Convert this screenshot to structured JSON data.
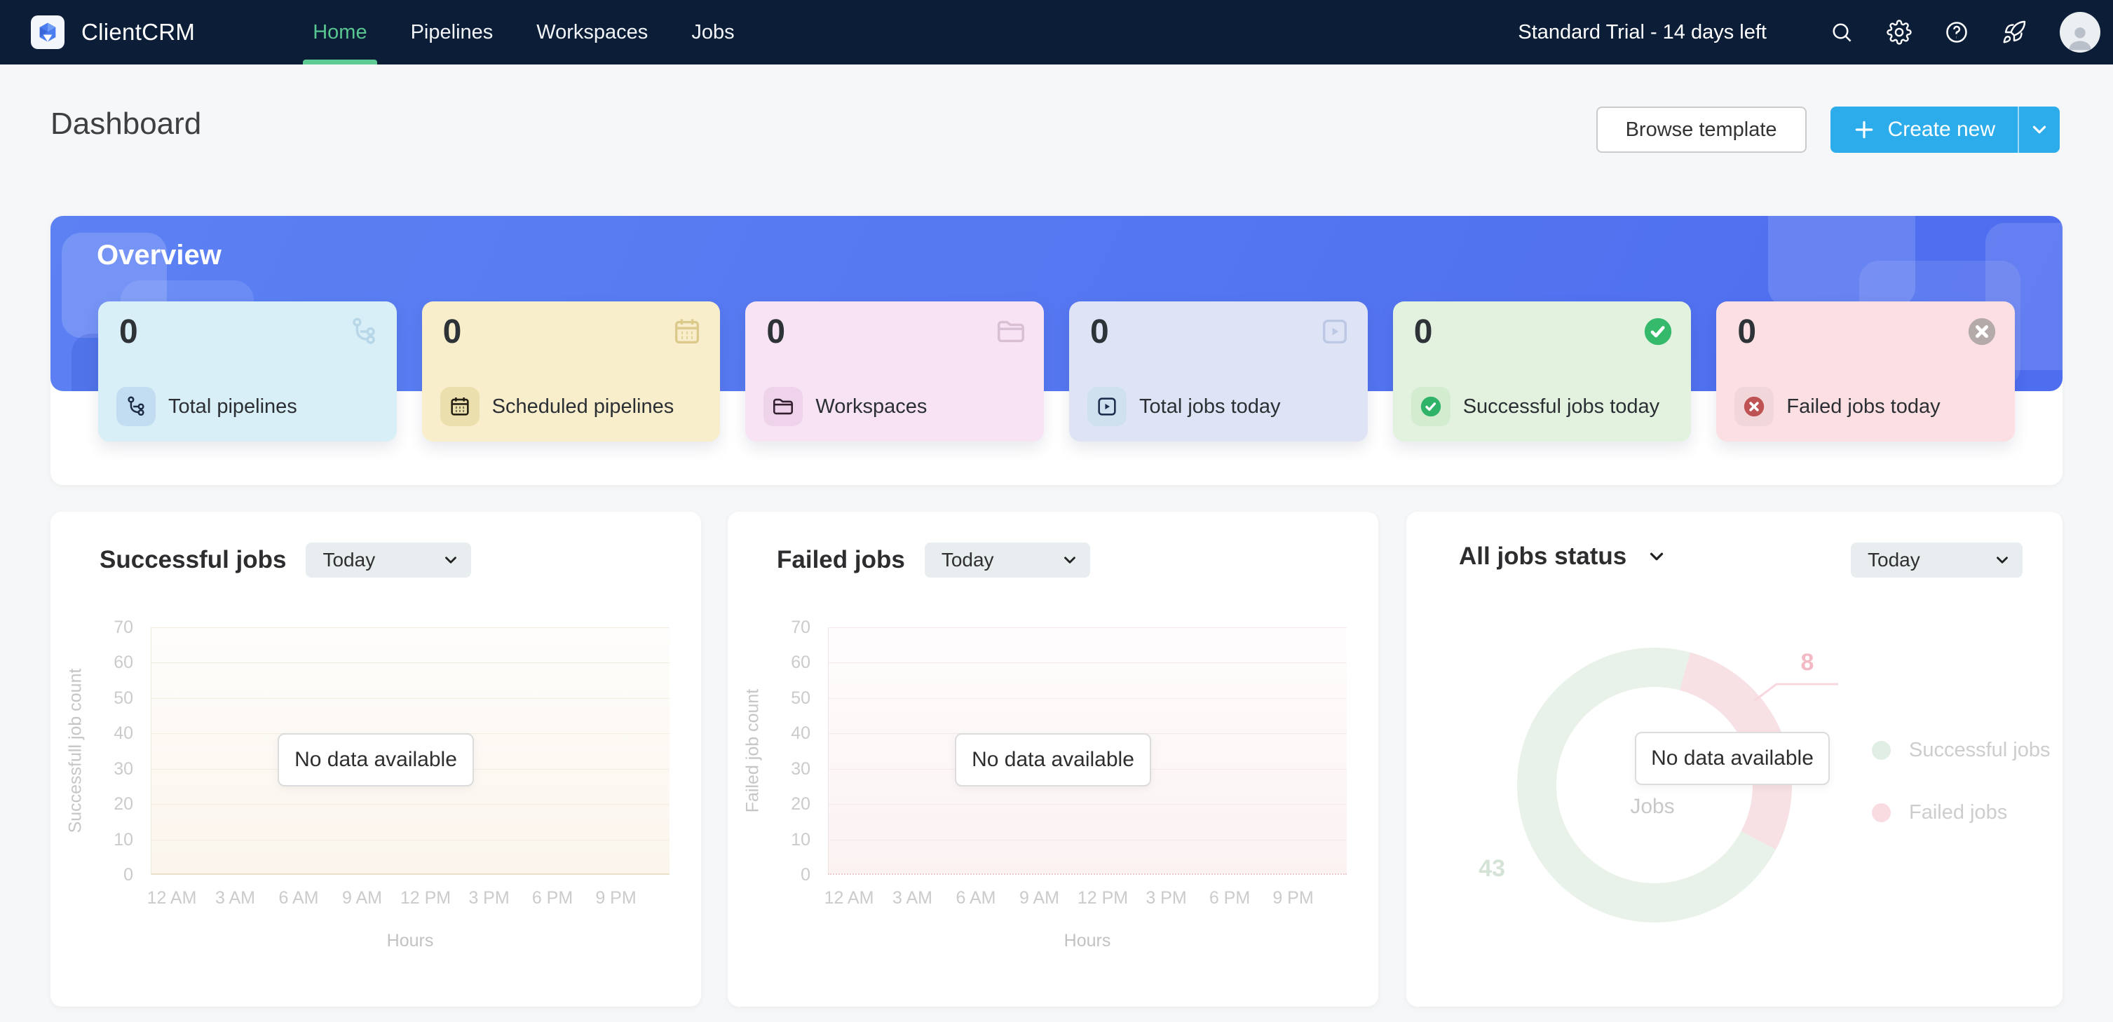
{
  "topbar": {
    "brand": "ClientCRM",
    "nav": [
      {
        "label": "Home",
        "active": true
      },
      {
        "label": "Pipelines",
        "active": false
      },
      {
        "label": "Workspaces",
        "active": false
      },
      {
        "label": "Jobs",
        "active": false
      }
    ],
    "trial_text": "Standard Trial - 14 days left",
    "icons": [
      "search-icon",
      "settings-icon",
      "help-icon",
      "rocket-icon",
      "avatar"
    ]
  },
  "page": {
    "title": "Dashboard",
    "actions": {
      "browse_template": "Browse template",
      "create_new": "Create new"
    }
  },
  "overview": {
    "title": "Overview",
    "cards": [
      {
        "value": "0",
        "label": "Total pipelines",
        "icon": "pipeline-icon",
        "bg": "#d8eff7"
      },
      {
        "value": "0",
        "label": "Scheduled pipelines",
        "icon": "calendar-icon",
        "bg": "#f8eecb"
      },
      {
        "value": "0",
        "label": "Workspaces",
        "icon": "folder-icon",
        "bg": "#f7e3f4"
      },
      {
        "value": "0",
        "label": "Total jobs today",
        "icon": "job-run-icon",
        "bg": "#dee4f6"
      },
      {
        "value": "0",
        "label": "Successful jobs today",
        "icon": "check-circle-icon",
        "bg": "#e2f2df"
      },
      {
        "value": "0",
        "label": "Failed jobs today",
        "icon": "x-circle-icon",
        "bg": "#fcdfe2"
      }
    ]
  },
  "chart_data": [
    {
      "type": "line",
      "title": "Successful jobs",
      "range_label": "Today",
      "x": [
        "12 AM",
        "3 AM",
        "6 AM",
        "9 AM",
        "12 PM",
        "3 PM",
        "6 PM",
        "9 PM"
      ],
      "series": [],
      "xlabel": "Hours",
      "ylabel": "Successfull job count",
      "ylim": [
        0,
        70
      ],
      "yticks": [
        0,
        10,
        20,
        30,
        40,
        50,
        60,
        70
      ],
      "grid": true,
      "empty_message": "No data available"
    },
    {
      "type": "line",
      "title": "Failed jobs",
      "range_label": "Today",
      "x": [
        "12 AM",
        "3 AM",
        "6 AM",
        "9 AM",
        "12 PM",
        "3 PM",
        "6 PM",
        "9 PM"
      ],
      "series": [],
      "xlabel": "Hours",
      "ylabel": "Failed job count",
      "ylim": [
        0,
        70
      ],
      "yticks": [
        0,
        10,
        20,
        30,
        40,
        50,
        60,
        70
      ],
      "grid": true,
      "empty_message": "No data available"
    },
    {
      "type": "donut",
      "title": "All jobs status",
      "range_label": "Today",
      "legend": [
        "Successful jobs",
        "Failed jobs"
      ],
      "values": [
        43,
        8
      ],
      "center_label": "Jobs",
      "legend_position": "right",
      "empty_message": "No data available"
    }
  ],
  "colors": {
    "topbar_bg": "#0b1d37",
    "accent_green": "#57c690",
    "create_button_blue": "#2caceb",
    "banner_blue": "#5479ef",
    "success_green": "#2eb368",
    "error_red": "#bf5252",
    "donut_success_faded": "#e9f2e9",
    "donut_failed_faded": "#f8e1e5"
  }
}
